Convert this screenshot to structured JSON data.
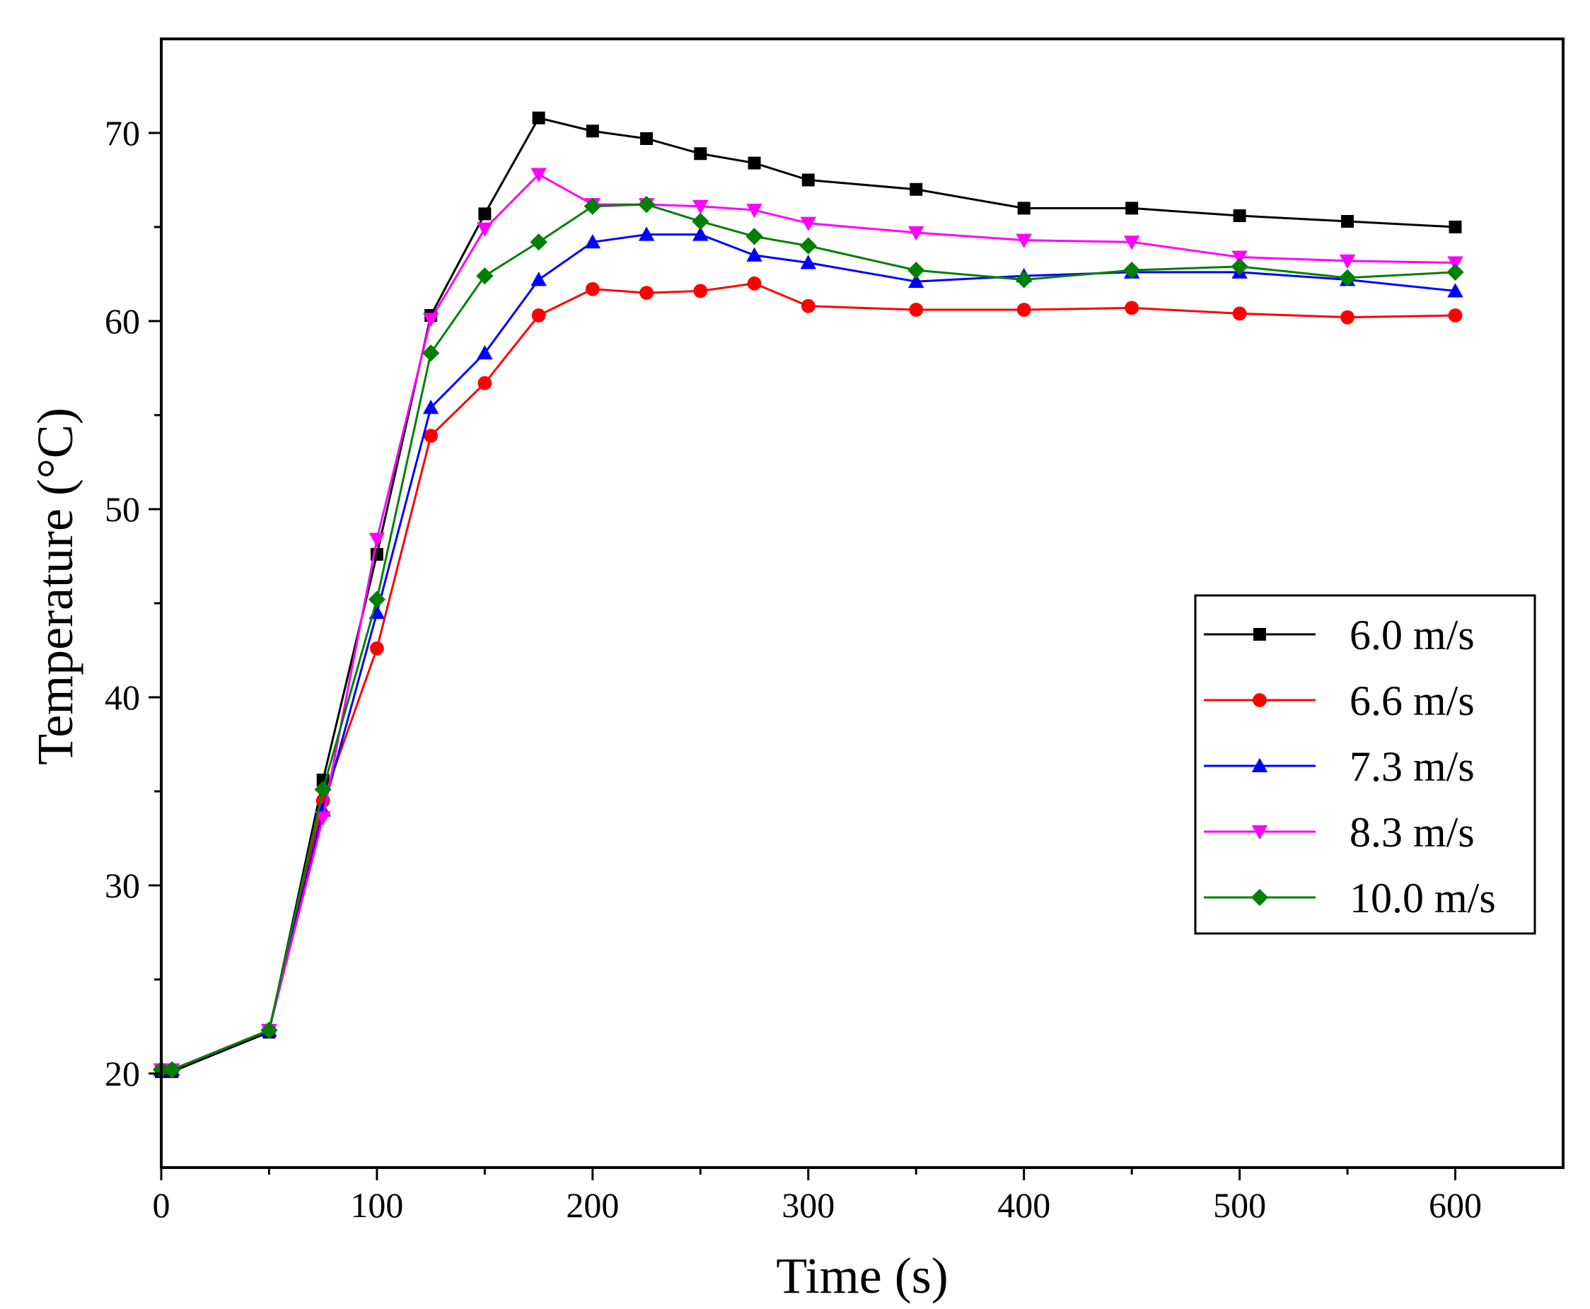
{
  "chart_data": {
    "type": "line",
    "title": "",
    "xlabel": "Time (s)",
    "ylabel": "Temperature (°C)",
    "xlim": [
      0,
      650
    ],
    "ylim": [
      15,
      75
    ],
    "xticks": [
      0,
      100,
      200,
      300,
      400,
      500,
      600
    ],
    "xtick_labels": [
      "0",
      "100",
      "200",
      "300",
      "400",
      "500",
      "600"
    ],
    "xminor": [
      50,
      150,
      250,
      350,
      450,
      550
    ],
    "yticks": [
      20,
      30,
      40,
      50,
      60,
      70
    ],
    "ytick_labels": [
      "20",
      "30",
      "40",
      "50",
      "60",
      "70"
    ],
    "yminor": [
      25,
      35,
      45,
      55,
      65
    ],
    "grid": false,
    "legend_position": "right",
    "x": [
      0,
      5,
      50,
      75,
      100,
      125,
      150,
      175,
      200,
      225,
      250,
      275,
      300,
      350,
      400,
      450,
      500,
      550,
      600
    ],
    "series": [
      {
        "name": "6.0 m/s",
        "color": "#000000",
        "marker": "square",
        "values": [
          20.1,
          20.1,
          22.2,
          35.6,
          47.6,
          60.3,
          65.7,
          70.8,
          70.1,
          69.7,
          68.9,
          68.4,
          67.5,
          67.0,
          66.0,
          66.0,
          65.6,
          65.3,
          65.0
        ]
      },
      {
        "name": "6.6 m/s",
        "color": "#ff0000",
        "marker": "circle",
        "values": [
          20.2,
          20.2,
          22.3,
          34.5,
          42.6,
          53.9,
          56.7,
          60.3,
          61.7,
          61.5,
          61.6,
          62.0,
          60.8,
          60.6,
          60.6,
          60.7,
          60.4,
          60.2,
          60.3
        ]
      },
      {
        "name": "7.3 m/s",
        "color": "#0000ff",
        "marker": "triangle-up",
        "values": [
          20.2,
          20.2,
          22.3,
          34.0,
          44.5,
          55.4,
          58.3,
          62.2,
          64.2,
          64.6,
          64.6,
          63.5,
          63.1,
          62.1,
          62.4,
          62.6,
          62.6,
          62.2,
          61.6
        ]
      },
      {
        "name": "8.3 m/s",
        "color": "#ff00ff",
        "marker": "triangle-down",
        "values": [
          20.2,
          20.2,
          22.3,
          33.6,
          48.4,
          60.1,
          64.9,
          67.8,
          66.2,
          66.2,
          66.1,
          65.9,
          65.2,
          64.7,
          64.3,
          64.2,
          63.4,
          63.2,
          63.1
        ]
      },
      {
        "name": "10.0 m/s",
        "color": "#008000",
        "marker": "diamond",
        "values": [
          20.2,
          20.2,
          22.3,
          35.1,
          45.2,
          58.3,
          62.4,
          64.2,
          66.1,
          66.2,
          65.3,
          64.5,
          64.0,
          62.7,
          62.2,
          62.7,
          62.9,
          62.3,
          62.6
        ]
      }
    ]
  }
}
